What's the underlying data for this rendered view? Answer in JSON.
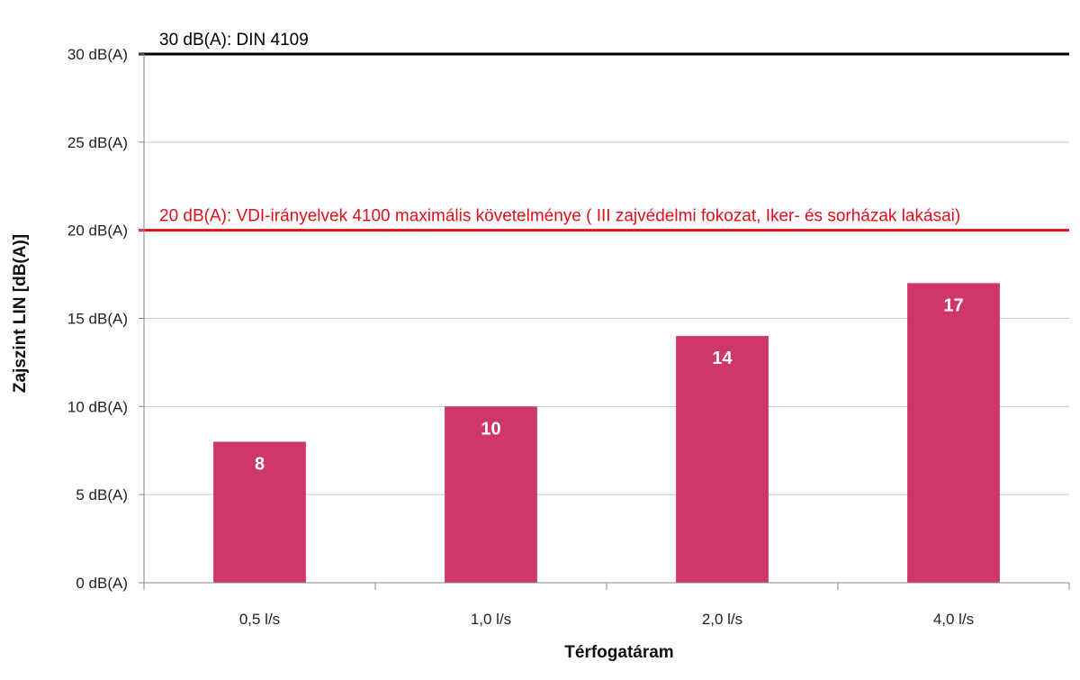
{
  "chart_data": {
    "type": "bar",
    "categories": [
      "0,5 l/s",
      "1,0 l/s",
      "2,0 l/s",
      "4,0 l/s"
    ],
    "values": [
      8,
      10,
      14,
      17
    ],
    "data_labels": [
      "8",
      "10",
      "14",
      "17"
    ],
    "xlabel": "Térfogatáram",
    "ylabel": "Zajszint LIN [dB(A)]",
    "ylim": [
      0,
      30
    ],
    "yticks": [
      0,
      5,
      10,
      15,
      20,
      25,
      30
    ],
    "ytick_labels": [
      "0 dB(A)",
      "5 dB(A)",
      "10 dB(A)",
      "15 dB(A)",
      "20 dB(A)",
      "25 dB(A)",
      "30 dB(A)"
    ],
    "grid": true,
    "legend": "none",
    "reference_lines": [
      {
        "value": 30,
        "label": "30 dB(A): DIN 4109",
        "color": "#000000"
      },
      {
        "value": 20,
        "label": "20 dB(A):  VDI-irányelvek  4100 maximális követelménye ( III zajvédelmi fokozat, Iker- és sorházak lakásai)",
        "color": "#e0101a"
      }
    ],
    "bar_color": "#cf376a"
  }
}
